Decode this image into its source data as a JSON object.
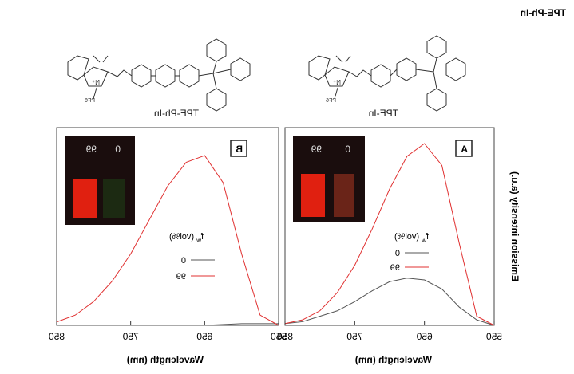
{
  "header": {
    "title": "TPE-Ph-In"
  },
  "panels": [
    {
      "panel_label": "A",
      "compound": "TPE-In",
      "counterion": "PF6",
      "inset": {
        "left_label": "99",
        "right_label": "0"
      }
    },
    {
      "panel_label": "B",
      "compound": "TPE-Ph-In",
      "counterion": "PF6",
      "inset": {
        "left_label": "99",
        "right_label": "0"
      }
    }
  ],
  "colors": {
    "fw_0": "#555555",
    "fw_99": "#e03030",
    "inset_bg": "#1a0d0d",
    "inset_red": "#e02010"
  },
  "chart_data": [
    {
      "type": "line",
      "panel": "A",
      "xlabel": "Wavelength (nm)",
      "ylabel": "Emission intensity (a.u.)",
      "x_ticks": [
        550,
        650,
        750,
        850
      ],
      "xlim": [
        550,
        850
      ],
      "ylim": [
        0,
        1.0
      ],
      "legend_title": "f_w (vol%)",
      "series": [
        {
          "name": "0",
          "color": "#555555",
          "x": [
            550,
            575,
            600,
            625,
            650,
            675,
            700,
            725,
            750,
            775,
            800,
            825,
            850
          ],
          "y": [
            0.0,
            0.03,
            0.1,
            0.2,
            0.25,
            0.26,
            0.24,
            0.19,
            0.13,
            0.08,
            0.05,
            0.02,
            0.01
          ]
        },
        {
          "name": "99",
          "color": "#e03030",
          "x": [
            550,
            575,
            600,
            625,
            650,
            675,
            700,
            725,
            750,
            775,
            800,
            825,
            850
          ],
          "y": [
            0.0,
            0.05,
            0.45,
            0.88,
            1.0,
            0.93,
            0.75,
            0.53,
            0.33,
            0.18,
            0.08,
            0.03,
            0.01
          ]
        }
      ]
    },
    {
      "type": "line",
      "panel": "B",
      "xlabel": "Wavelength (nm)",
      "ylabel": "",
      "x_ticks": [
        550,
        650,
        750,
        850
      ],
      "xlim": [
        550,
        850
      ],
      "ylim": [
        0,
        1.0
      ],
      "legend_title": "f_w (vol%)",
      "series": [
        {
          "name": "0",
          "color": "#555555",
          "x": [
            550,
            600,
            650,
            700,
            750,
            800,
            850
          ],
          "y": [
            0.01,
            0.01,
            0.0,
            0.0,
            0.0,
            0.0,
            0.0
          ]
        },
        {
          "name": "99",
          "color": "#e03030",
          "x": [
            550,
            575,
            600,
            625,
            650,
            675,
            700,
            725,
            750,
            775,
            800,
            825,
            850
          ],
          "y": [
            0.0,
            0.06,
            0.42,
            0.84,
            1.0,
            0.96,
            0.82,
            0.62,
            0.42,
            0.26,
            0.14,
            0.06,
            0.02
          ]
        }
      ]
    }
  ]
}
